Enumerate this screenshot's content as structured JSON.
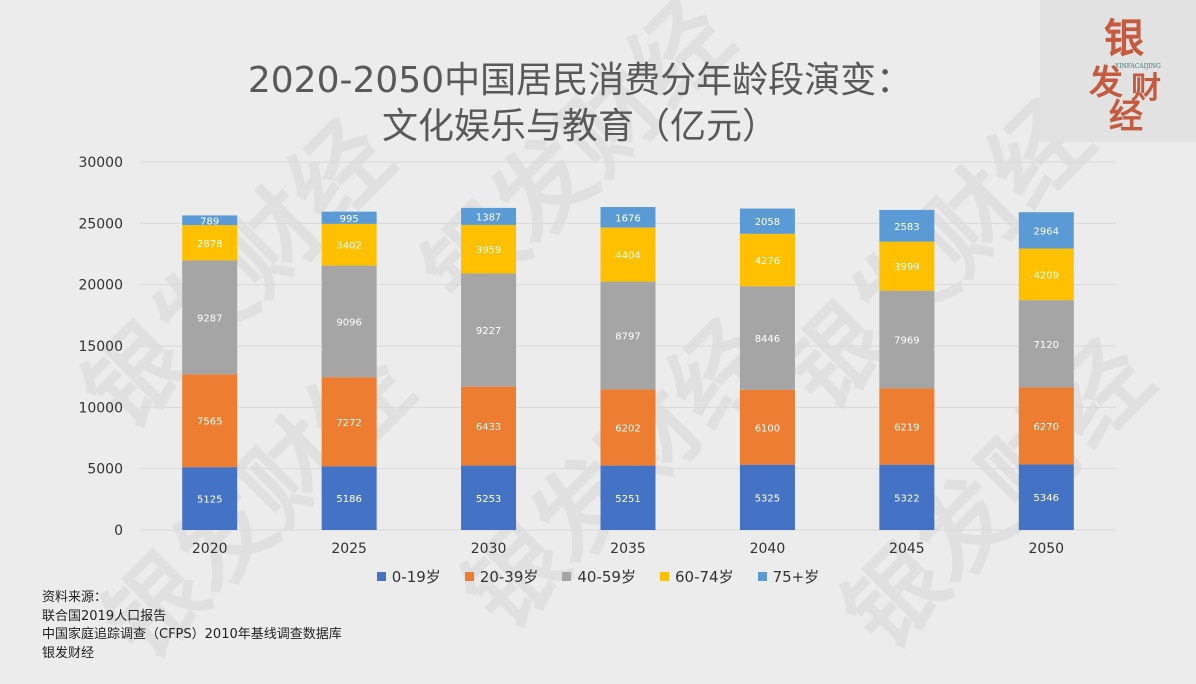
{
  "title_line1": "2020-2050中国居民消费分年龄段演变：",
  "title_line2": "文化娱乐与教育（亿元）",
  "logo": {
    "text": "银发财经",
    "subtext": "YINFACAIJING",
    "color": "#c55a3e"
  },
  "watermark_text": "银发财经",
  "sources": {
    "heading": "资料来源：",
    "lines": [
      "联合国2019人口报告",
      "中国家庭追踪调查（CFPS）2010年基线调查数据库",
      "银发财经"
    ]
  },
  "chart_data": {
    "type": "bar",
    "stacked": true,
    "categories": [
      "2020",
      "2025",
      "2030",
      "2035",
      "2040",
      "2045",
      "2050"
    ],
    "ylim": [
      0,
      30000
    ],
    "yticks": [
      "0",
      "5000",
      "10000",
      "15000",
      "20000",
      "25000",
      "30000"
    ],
    "grid": true,
    "legend_position": "bottom",
    "series": [
      {
        "name": "0-19岁",
        "color": "#4472c4",
        "values": [
          5125,
          5186,
          5253,
          5251,
          5325,
          5322,
          5346
        ]
      },
      {
        "name": "20-39岁",
        "color": "#ed7d31",
        "values": [
          7565,
          7272,
          6433,
          6202,
          6100,
          6219,
          6270
        ]
      },
      {
        "name": "40-59岁",
        "color": "#a5a5a5",
        "values": [
          9287,
          9096,
          9227,
          8797,
          8446,
          7969,
          7120
        ]
      },
      {
        "name": "60-74岁",
        "color": "#ffc000",
        "values": [
          2878,
          3402,
          3959,
          4404,
          4276,
          3999,
          4209
        ]
      },
      {
        "name": "75+岁",
        "color": "#5b9bd5",
        "values": [
          789,
          995,
          1387,
          1676,
          2058,
          2583,
          2964
        ]
      }
    ]
  }
}
